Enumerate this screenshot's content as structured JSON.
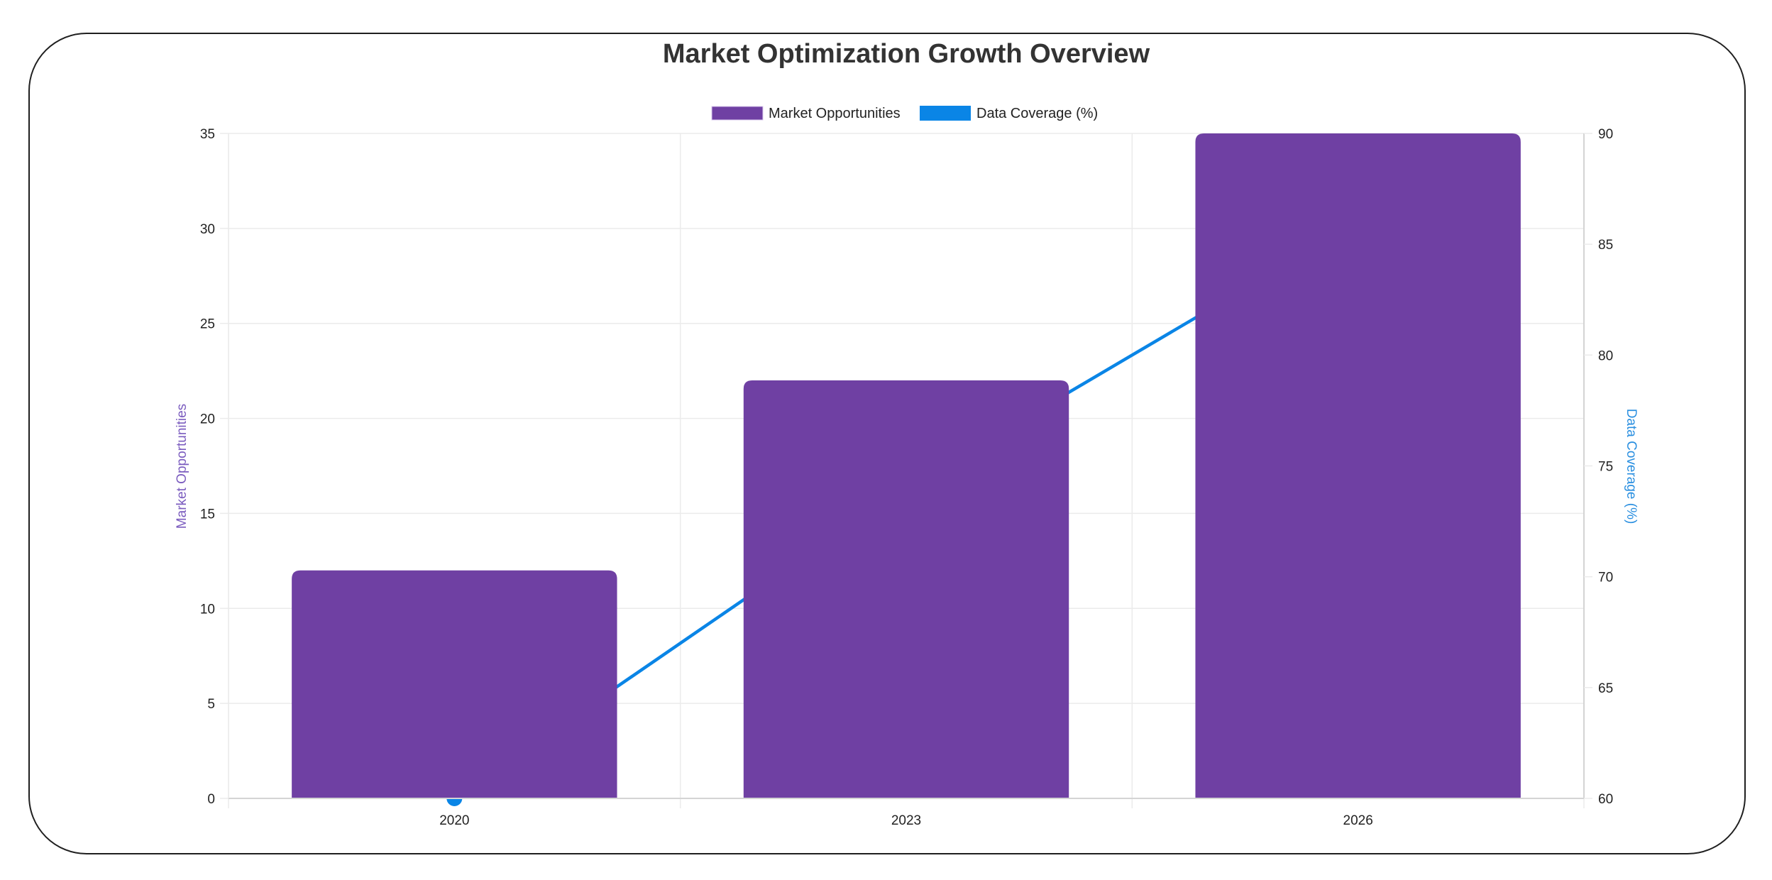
{
  "chart_data": {
    "type": "bar",
    "title": "Market Optimization Growth Overview",
    "categories": [
      "2020",
      "2023",
      "2026"
    ],
    "series": [
      {
        "name": "Market Opportunities",
        "type": "bar",
        "axis": "left",
        "color": "#6f40a3",
        "values": [
          12,
          22,
          35
        ]
      },
      {
        "name": "Data Coverage (%)",
        "type": "line",
        "axis": "right",
        "color": "#0a85e6",
        "values": [
          60,
          74,
          86
        ]
      }
    ],
    "xlabel": "",
    "ylabel": "Market Opportunities",
    "ylabel_right": "Data Coverage (%)",
    "ylim": [
      0,
      35
    ],
    "ylim_right": [
      60,
      90
    ],
    "yticks": [
      0,
      5,
      10,
      15,
      20,
      25,
      30,
      35
    ],
    "yticks_right": [
      60,
      65,
      70,
      75,
      80,
      85,
      90
    ],
    "grid": true,
    "legend_position": "top"
  },
  "colors": {
    "bar": "#6f40a3",
    "line": "#0a85e6",
    "left_axis_title": "#7b5cbf",
    "right_axis_title": "#2a8fe0"
  }
}
